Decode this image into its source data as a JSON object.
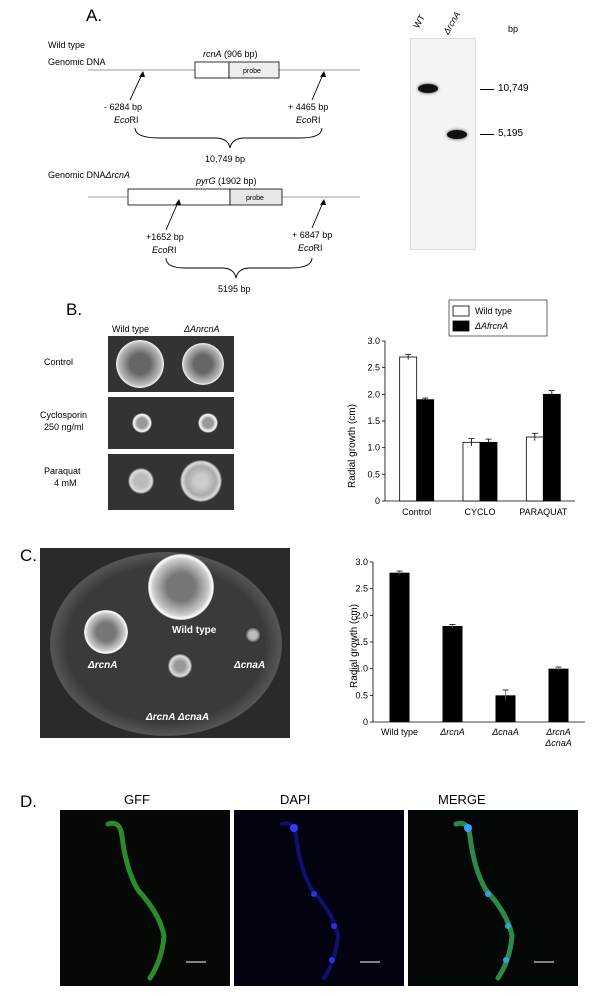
{
  "panelA": {
    "label": "A.",
    "wt_line1": "Wild type",
    "wt_line2": "Genomic DNA",
    "gene_label": "rcnA",
    "gene_size": " (906 bp)",
    "probe": "probe",
    "left_site_bp": "- 6284 bp",
    "left_site_enz": "Eco",
    "left_site_enz2": "RI",
    "right_site_bp": "+ 4465 bp",
    "right_site_enz": "Eco",
    "right_site_enz2": "RI",
    "span_wt": "10,749 bp",
    "mut_line": "Genomic DNA",
    "mut_sub": "ΔrcnA",
    "marker_label": "pyrG",
    "marker_size": " (1902 bp)",
    "mut_left_bp": "+1652 bp",
    "mut_left_enz": "Eco",
    "mut_left_enz2": "RI",
    "mut_right_bp": "+ 6847 bp",
    "mut_right_enz": "Eco",
    "mut_right_enz2": "RI",
    "span_mut": "5195 bp",
    "blot": {
      "lane1": "WT",
      "lane2": "ΔrcnA",
      "unit": "bp",
      "band1": "10,749",
      "band2": "5,195"
    }
  },
  "panelB": {
    "label": "B.",
    "col1": "Wild type",
    "col2": "ΔAnrcnA",
    "rows": [
      "Control",
      "Cyclosporin",
      "250 ng/ml",
      "Paraquat",
      "4 mM"
    ],
    "chart": {
      "ylabel": "Radial growth (cm)",
      "yticks": [
        "0",
        "0.5",
        "1.0",
        "1.5",
        "2.0",
        "2.5",
        "3.0"
      ],
      "legend": [
        "Wild type",
        "ΔAfrcnA"
      ]
    }
  },
  "panelC": {
    "label": "C.",
    "plate_labels": {
      "wt": "Wild type",
      "rcnA": "ΔrcnA",
      "cnaA": "ΔcnaA",
      "double": "ΔrcnA ΔcnaA"
    },
    "chart": {
      "ylabel": "Radial growth (cm)",
      "yticks": [
        "0",
        "0.5",
        "1.0",
        "1.5",
        "2.0",
        "2.5",
        "3.0"
      ]
    }
  },
  "panelD": {
    "label": "D.",
    "titles": [
      "GFF",
      "DAPI",
      "MERGE"
    ]
  },
  "chart_data": [
    {
      "type": "bar",
      "categories": [
        "Control",
        "CYCLO",
        "PARAQUAT"
      ],
      "series": [
        {
          "name": "Wild type",
          "values": [
            2.7,
            1.1,
            1.2
          ],
          "errors": [
            0.05,
            0.07,
            0.07
          ],
          "color": "#ffffff"
        },
        {
          "name": "ΔAfrcnA",
          "values": [
            1.9,
            1.1,
            2.0
          ],
          "errors": [
            0.03,
            0.06,
            0.07
          ],
          "color": "#000000"
        }
      ],
      "ylabel": "Radial growth (cm)",
      "ylim": [
        0,
        3.0
      ],
      "legend": "top-right"
    },
    {
      "type": "bar",
      "categories": [
        "Wild type",
        "ΔrcnA",
        "ΔcnaA",
        "ΔrcnA ΔcnaA"
      ],
      "values": [
        2.8,
        1.8,
        0.5,
        1.0
      ],
      "errors": [
        0.03,
        0.03,
        0.1,
        0.03
      ],
      "ylabel": "Radial growth (cm)",
      "ylim": [
        0,
        3.0
      ]
    }
  ]
}
